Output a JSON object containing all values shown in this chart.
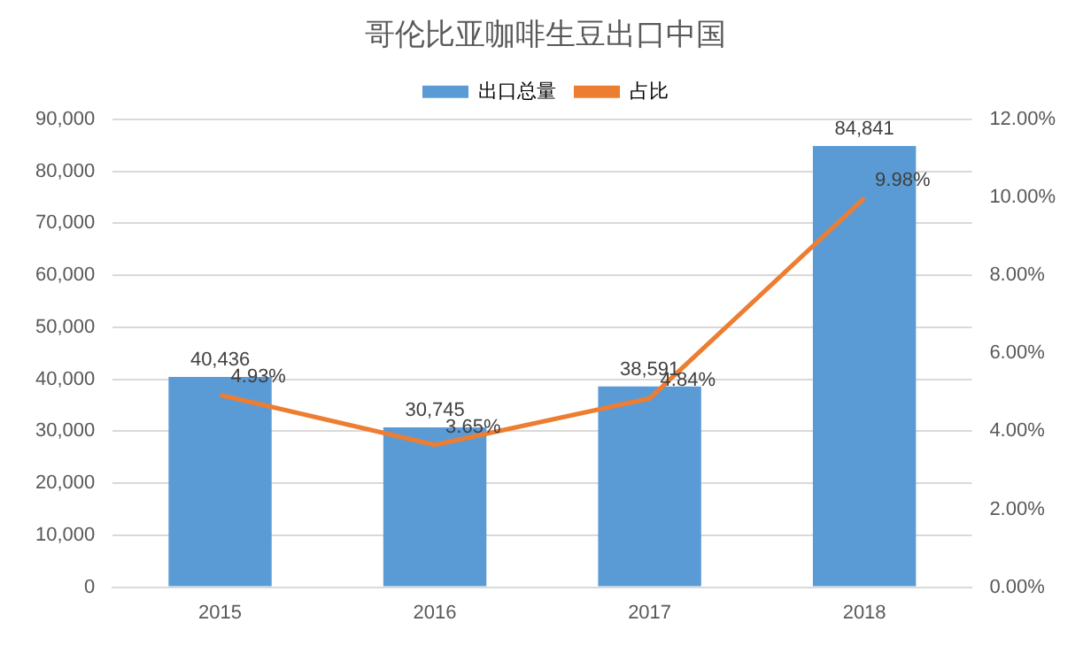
{
  "chart_data": {
    "type": "bar",
    "title": "哥伦比亚咖啡生豆出口中国",
    "categories": [
      "2015",
      "2016",
      "2017",
      "2018"
    ],
    "series": [
      {
        "name": "出口总量",
        "color": "#5b9bd5",
        "values": [
          40436,
          30745,
          38591,
          84841
        ],
        "value_labels": [
          "40,436",
          "30,745",
          "38,591",
          "84,841"
        ]
      },
      {
        "name": "占比",
        "type": "line",
        "axis": "y2",
        "color": "#ed7d31",
        "values": [
          4.93,
          3.65,
          4.84,
          9.98
        ],
        "value_labels": [
          "4.93%",
          "3.65%",
          "4.84%",
          "9.98%"
        ],
        "marker": "none"
      }
    ],
    "ylim": [
      0,
      90000
    ],
    "yticks": [
      0,
      {
        "value": 10000,
        "label": "10,000"
      },
      {
        "value": 20000,
        "label": "20,000"
      },
      {
        "value": 30000,
        "label": "30,000"
      },
      {
        "value": 40000,
        "label": "40,000"
      },
      {
        "value": 50000,
        "label": "50,000"
      },
      {
        "value": 60000,
        "label": "60,000"
      },
      {
        "value": 70000,
        "label": "70,000"
      },
      {
        "value": 80000,
        "label": "80,000"
      },
      {
        "value": 90000,
        "label": "90,000"
      }
    ],
    "y2lim": [
      0,
      12
    ],
    "y2ticks": [
      {
        "value": 0,
        "label": "0.00%"
      },
      {
        "value": 2,
        "label": "2.00%"
      },
      {
        "value": 4,
        "label": "4.00%"
      },
      {
        "value": 6,
        "label": "6.00%"
      },
      {
        "value": 8,
        "label": "8.00%"
      },
      {
        "value": 10,
        "label": "10.00%"
      },
      {
        "value": 12,
        "label": "12.00%"
      }
    ],
    "grid": "y",
    "legend": "top"
  }
}
